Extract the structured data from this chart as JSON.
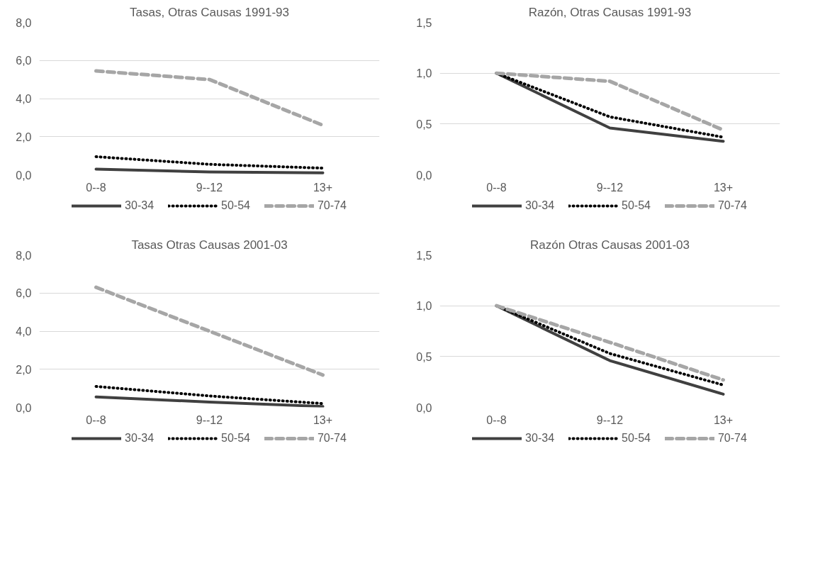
{
  "chart_data": [
    {
      "type": "line",
      "title": "Tasas, Otras Causas 1991-93",
      "categories": [
        "0--8",
        "9--12",
        "13+"
      ],
      "ylim": [
        0,
        8
      ],
      "yticks": [
        {
          "value": 0,
          "label": "0,0"
        },
        {
          "value": 2,
          "label": "2,0"
        },
        {
          "value": 4,
          "label": "4,0"
        },
        {
          "value": 6,
          "label": "6,0"
        },
        {
          "value": 8,
          "label": "8,0"
        }
      ],
      "grid": "y",
      "legend": "bottom",
      "marker": "none",
      "series": [
        {
          "name": "30-34",
          "color": "#404040",
          "line_style": "solid",
          "values": [
            0.3,
            0.15,
            0.1
          ]
        },
        {
          "name": "50-54",
          "color": "#000000",
          "line_style": "dotted",
          "values": [
            0.95,
            0.55,
            0.35
          ]
        },
        {
          "name": "70-74",
          "color": "#a6a6a6",
          "line_style": "dashed",
          "values": [
            5.45,
            5.0,
            2.6
          ]
        }
      ]
    },
    {
      "type": "line",
      "title": "Razón, Otras Causas 1991-93",
      "categories": [
        "0--8",
        "9--12",
        "13+"
      ],
      "ylim": [
        0,
        1.5
      ],
      "yticks": [
        {
          "value": 0,
          "label": "0,0"
        },
        {
          "value": 0.5,
          "label": "0,5"
        },
        {
          "value": 1,
          "label": "1,0"
        },
        {
          "value": 1.5,
          "label": "1,5"
        }
      ],
      "grid": "y",
      "legend": "bottom",
      "marker": "none",
      "series": [
        {
          "name": "30-34",
          "color": "#404040",
          "line_style": "solid",
          "values": [
            1.0,
            0.46,
            0.33
          ]
        },
        {
          "name": "50-54",
          "color": "#000000",
          "line_style": "dotted",
          "values": [
            1.0,
            0.57,
            0.37
          ]
        },
        {
          "name": "70-74",
          "color": "#a6a6a6",
          "line_style": "dashed",
          "values": [
            1.0,
            0.92,
            0.44
          ]
        }
      ]
    },
    {
      "type": "line",
      "title": "Tasas Otras Causas 2001-03",
      "categories": [
        "0--8",
        "9--12",
        "13+"
      ],
      "ylim": [
        0,
        8
      ],
      "yticks": [
        {
          "value": 0,
          "label": "0,0"
        },
        {
          "value": 2,
          "label": "2,0"
        },
        {
          "value": 4,
          "label": "4,0"
        },
        {
          "value": 6,
          "label": "6,0"
        },
        {
          "value": 8,
          "label": "8,0"
        }
      ],
      "grid": "y",
      "legend": "bottom",
      "marker": "none",
      "series": [
        {
          "name": "30-34",
          "color": "#404040",
          "line_style": "solid",
          "values": [
            0.55,
            0.28,
            0.05
          ]
        },
        {
          "name": "50-54",
          "color": "#000000",
          "line_style": "dotted",
          "values": [
            1.1,
            0.6,
            0.2
          ]
        },
        {
          "name": "70-74",
          "color": "#a6a6a6",
          "line_style": "dashed",
          "values": [
            6.3,
            4.0,
            1.7
          ]
        }
      ]
    },
    {
      "type": "line",
      "title": "Razón Otras Causas 2001-03",
      "categories": [
        "0--8",
        "9--12",
        "13+"
      ],
      "ylim": [
        0,
        1.5
      ],
      "yticks": [
        {
          "value": 0,
          "label": "0,0"
        },
        {
          "value": 0.5,
          "label": "0,5"
        },
        {
          "value": 1,
          "label": "1,0"
        },
        {
          "value": 1.5,
          "label": "1,5"
        }
      ],
      "grid": "y",
      "legend": "bottom",
      "marker": "none",
      "series": [
        {
          "name": "30-34",
          "color": "#404040",
          "line_style": "solid",
          "values": [
            1.0,
            0.46,
            0.13
          ]
        },
        {
          "name": "50-54",
          "color": "#000000",
          "line_style": "dotted",
          "values": [
            1.0,
            0.53,
            0.22
          ]
        },
        {
          "name": "70-74",
          "color": "#a6a6a6",
          "line_style": "dashed",
          "values": [
            1.0,
            0.64,
            0.27
          ]
        }
      ]
    }
  ]
}
